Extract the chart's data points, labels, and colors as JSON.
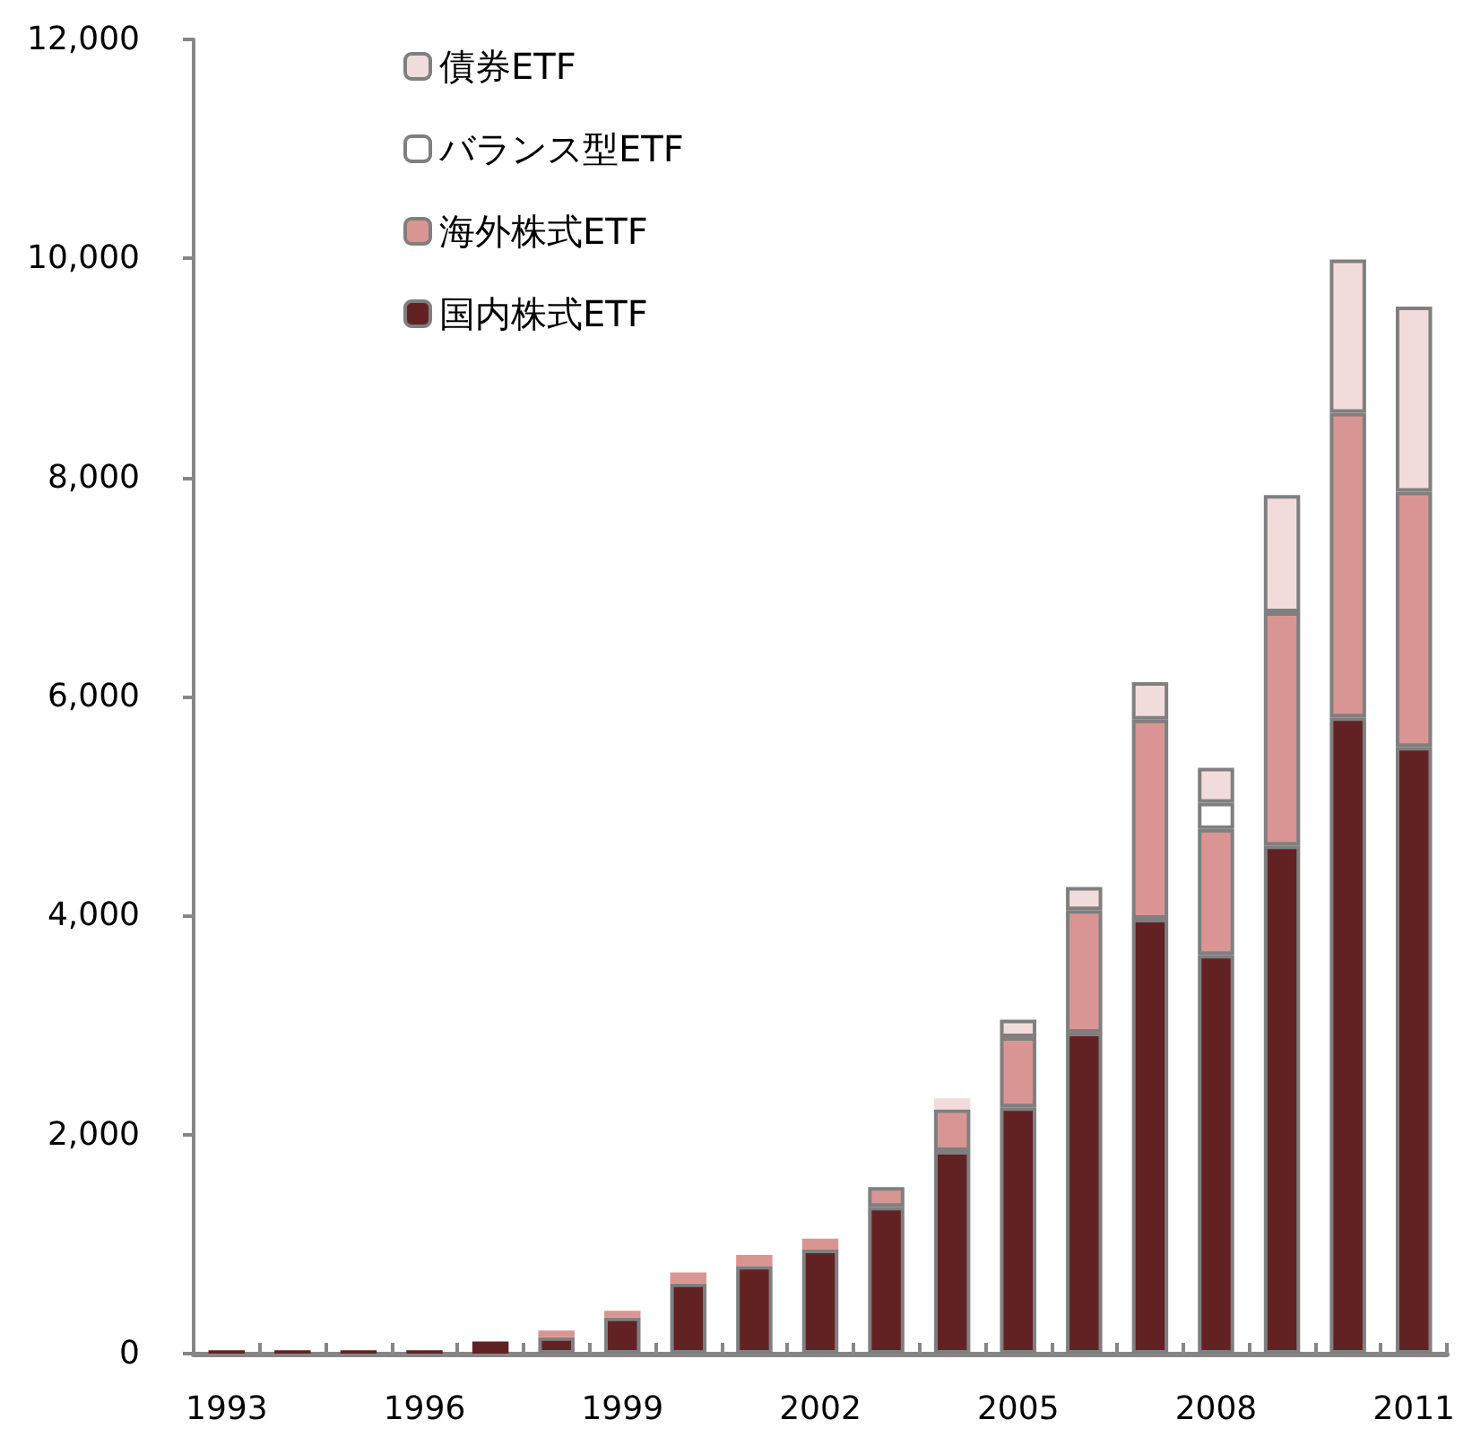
{
  "chart_data": {
    "type": "bar",
    "stacked": true,
    "categories": [
      "1993",
      null,
      null,
      "1996",
      null,
      null,
      "1999",
      null,
      null,
      "2002",
      null,
      null,
      "2005",
      null,
      null,
      "2008",
      null,
      null,
      "2011"
    ],
    "series": [
      {
        "name": "国内株式ETF",
        "color": "#622224",
        "values": [
          30,
          30,
          30,
          30,
          110,
          150,
          330,
          640,
          800,
          950,
          1340,
          1850,
          2250,
          2930,
          3970,
          3640,
          4640,
          5810,
          5540
        ]
      },
      {
        "name": "海外株式ETF",
        "color": "#d99594",
        "values": [
          null,
          null,
          null,
          null,
          null,
          60,
          60,
          100,
          100,
          100,
          180,
          380,
          640,
          1120,
          1820,
          1150,
          2130,
          2780,
          2330
        ]
      },
      {
        "name": "バランス型ETF",
        "color": "#ffffff",
        "values": [
          null,
          null,
          null,
          null,
          null,
          null,
          null,
          null,
          null,
          null,
          null,
          null,
          null,
          null,
          null,
          240,
          null,
          null,
          null
        ]
      },
      {
        "name": "債券ETF",
        "color": "#f2dcdb",
        "values": [
          null,
          null,
          null,
          null,
          null,
          null,
          null,
          null,
          null,
          null,
          null,
          100,
          160,
          210,
          340,
          320,
          1070,
          1400,
          1690
        ]
      }
    ],
    "ylim": [
      0,
      12000
    ],
    "yticks": [
      0,
      {
        "value": 2000,
        "label": "2,000"
      },
      {
        "value": 4000,
        "label": "4,000"
      },
      {
        "value": 6000,
        "label": "6,000"
      },
      {
        "value": 8000,
        "label": "8,000"
      },
      {
        "value": 10000,
        "label": "10,000"
      },
      {
        "value": 12000,
        "label": "12,000"
      }
    ],
    "grid": false,
    "legend": "top left"
  }
}
